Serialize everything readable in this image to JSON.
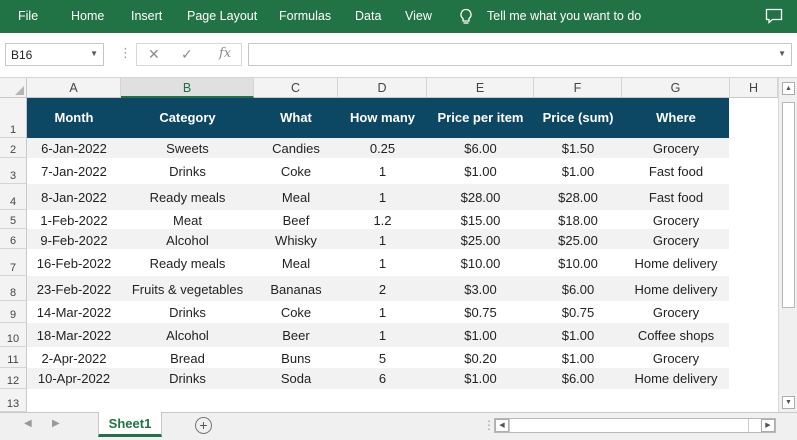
{
  "ribbon": {
    "menu": [
      "File",
      "Home",
      "Insert",
      "Page Layout",
      "Formulas",
      "Data",
      "View"
    ],
    "tell_me": "Tell me what you want to do",
    "accent": "#217346"
  },
  "formula_bar": {
    "name_box": "B16",
    "cancel_icon": "✕",
    "enter_icon": "✓",
    "fx_label": "fx",
    "value": ""
  },
  "columns": [
    "A",
    "B",
    "C",
    "D",
    "E",
    "F",
    "G",
    "H"
  ],
  "rows": [
    "1",
    "2",
    "3",
    "4",
    "5",
    "6",
    "7",
    "8",
    "9",
    "10",
    "11",
    "12",
    "13"
  ],
  "table": {
    "header_color": "#0c4763",
    "headers": [
      "Month",
      "Category",
      "What",
      "How many",
      "Price per item",
      "Price (sum)",
      "Where"
    ],
    "rows": [
      [
        "6-Jan-2022",
        "Sweets",
        "Candies",
        "0.25",
        "$6.00",
        "$1.50",
        "Grocery"
      ],
      [
        "7-Jan-2022",
        "Drinks",
        "Coke",
        "1",
        "$1.00",
        "$1.00",
        "Fast food"
      ],
      [
        "8-Jan-2022",
        "Ready meals",
        "Meal",
        "1",
        "$28.00",
        "$28.00",
        "Fast food"
      ],
      [
        "1-Feb-2022",
        "Meat",
        "Beef",
        "1.2",
        "$15.00",
        "$18.00",
        "Grocery"
      ],
      [
        "9-Feb-2022",
        "Alcohol",
        "Whisky",
        "1",
        "$25.00",
        "$25.00",
        "Grocery"
      ],
      [
        "16-Feb-2022",
        "Ready meals",
        "Meal",
        "1",
        "$10.00",
        "$10.00",
        "Home delivery"
      ],
      [
        "23-Feb-2022",
        "Fruits & vegetables",
        "Bananas",
        "2",
        "$3.00",
        "$6.00",
        "Home delivery"
      ],
      [
        "14-Mar-2022",
        "Drinks",
        "Coke",
        "1",
        "$0.75",
        "$0.75",
        "Grocery"
      ],
      [
        "18-Mar-2022",
        "Alcohol",
        "Beer",
        "1",
        "$1.00",
        "$1.00",
        "Coffee shops"
      ],
      [
        "2-Apr-2022",
        "Bread",
        "Buns",
        "5",
        "$0.20",
        "$1.00",
        "Grocery"
      ],
      [
        "10-Apr-2022",
        "Drinks",
        "Soda",
        "6",
        "$1.00",
        "$6.00",
        "Home delivery"
      ]
    ]
  },
  "sheet_tabs": [
    "Sheet1"
  ],
  "add_sheet_icon": "+"
}
